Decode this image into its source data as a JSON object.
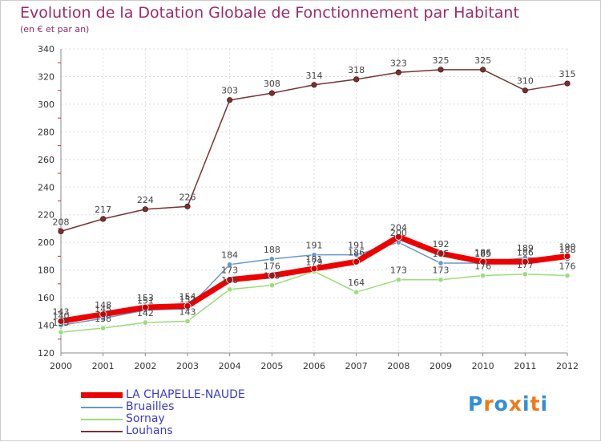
{
  "chart_data": {
    "type": "line",
    "title": "Evolution de la Dotation Globale de Fonctionnement par Habitant",
    "subtitle": "(en € et par an)",
    "x": [
      "2000",
      "2001",
      "2002",
      "2003",
      "2004",
      "2005",
      "2006",
      "2007",
      "2008",
      "2009",
      "2010",
      "2011",
      "2012"
    ],
    "ylim": [
      120,
      340
    ],
    "yticks": [
      120,
      140,
      160,
      180,
      200,
      220,
      240,
      260,
      280,
      300,
      320,
      340
    ],
    "grid": true,
    "legend_position": "bottom-left",
    "series": [
      {
        "name": "LA CHAPELLE-NAUDE",
        "color": "#ee0000",
        "values": [
          143,
          148,
          153,
          154,
          173,
          176,
          181,
          186,
          204,
          192,
          186,
          186,
          190
        ]
      },
      {
        "name": "Bruailles",
        "color": "#6699cc",
        "values": [
          140,
          145,
          151,
          152,
          184,
          188,
          191,
          191,
          200,
          185,
          185,
          189,
          188
        ]
      },
      {
        "name": "Sornay",
        "color": "#99dd77",
        "values": [
          135,
          138,
          142,
          143,
          166,
          169,
          179,
          164,
          173,
          173,
          176,
          177,
          176
        ]
      },
      {
        "name": "Louhans",
        "color": "#773333",
        "values": [
          208,
          217,
          224,
          226,
          303,
          308,
          314,
          318,
          323,
          325,
          325,
          310,
          315
        ]
      }
    ]
  },
  "logo": {
    "text": "Proxiti",
    "colors": [
      "#2f8fd8",
      "#f07a14",
      "#2f8fd8",
      "#f07a14",
      "#2f8fd8",
      "#f07a14",
      "#2f8fd8"
    ]
  }
}
